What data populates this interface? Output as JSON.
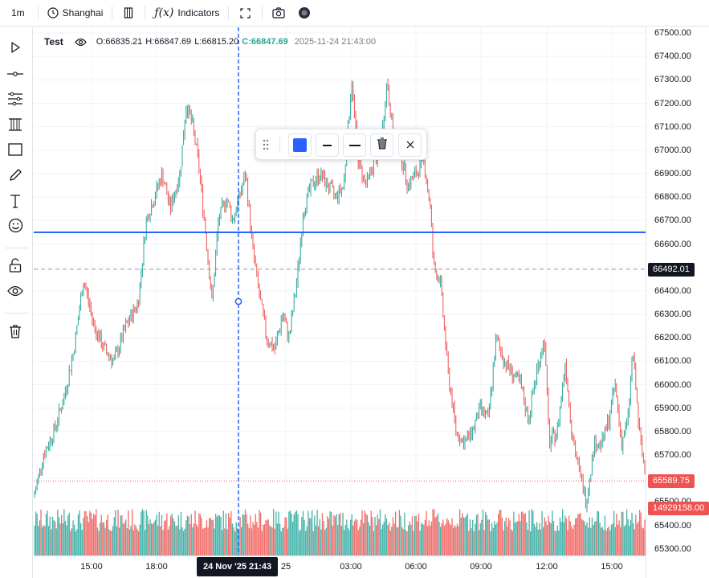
{
  "toolbar": {
    "interval": "1m",
    "timezone": "Shanghai",
    "indicators_label": "Indicators"
  },
  "legend": {
    "symbol": "Test",
    "open": "O:66835.21",
    "high": "H:66847.69",
    "low": "L:66815.20",
    "close": "C:66847.69",
    "timestamp": "2025-11-24 21:43:00"
  },
  "price_axis": {
    "ticks": [
      "67500.00",
      "67400.00",
      "67300.00",
      "67200.00",
      "67100.00",
      "67000.00",
      "66900.00",
      "66800.00",
      "66700.00",
      "66600.00",
      "66500.00",
      "66400.00",
      "66300.00",
      "66200.00",
      "66100.00",
      "66000.00",
      "65900.00",
      "65800.00",
      "65700.00",
      "65600.00",
      "65500.00",
      "65400.00",
      "65300.00"
    ],
    "crosshair_label": "66492.01",
    "last_price_label": "65589.75",
    "volume_label": "14929158.00"
  },
  "time_axis": {
    "ticks": [
      "15:00",
      "18:00",
      "25",
      "03:00",
      "06:00",
      "09:00",
      "12:00",
      "15:00"
    ],
    "crosshair_label": "24 Nov '25   21:43"
  },
  "colors": {
    "up": "#26a69a",
    "down": "#ef5350",
    "drawing_line": "#2962ff",
    "accent_swatch": "#2962ff"
  },
  "icons": {
    "top": [
      "clock-icon",
      "compare-icon",
      "function-icon",
      "fullscreen-icon",
      "camera-icon",
      "theme-icon"
    ],
    "left": [
      "cursor-icon",
      "horizontal-line-icon",
      "channel-icon",
      "parallel-lines-icon",
      "rectangle-icon",
      "pencil-icon",
      "text-icon",
      "emoji-icon",
      "unlock-icon",
      "eye-icon",
      "trash-icon"
    ],
    "float": [
      "drag-handle-icon",
      "color-swatch-icon",
      "line-width-icon",
      "line-style-icon",
      "delete-icon",
      "close-icon"
    ]
  }
}
